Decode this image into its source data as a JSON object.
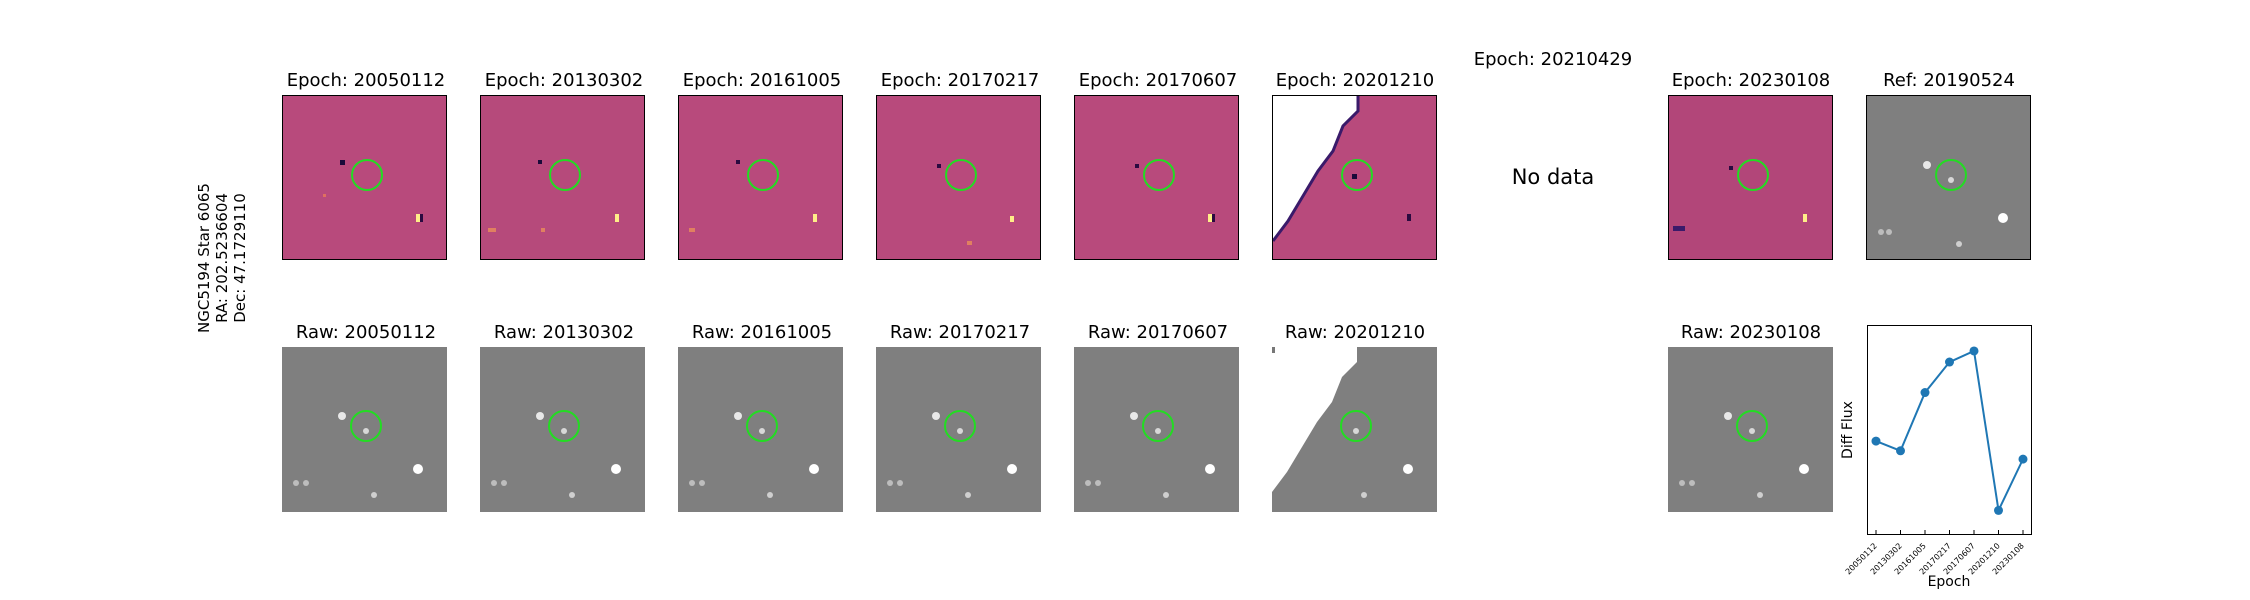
{
  "object": {
    "name": "NGC5194 Star 6065",
    "ra": "RA: 202.5236604",
    "dec": "Dec: 47.1729110"
  },
  "diff_panels": [
    {
      "title": "Epoch: 20050112"
    },
    {
      "title": "Epoch: 20130302"
    },
    {
      "title": "Epoch: 20161005"
    },
    {
      "title": "Epoch: 20170217"
    },
    {
      "title": "Epoch: 20170607"
    },
    {
      "title": "Epoch: 20201210"
    },
    {
      "title": "Epoch: 20210429",
      "no_data": "No data"
    },
    {
      "title": "Epoch: 20230108"
    }
  ],
  "ref_panel": {
    "title": "Ref: 20190524"
  },
  "raw_panels": [
    {
      "title": "Raw: 20050112"
    },
    {
      "title": "Raw: 20130302"
    },
    {
      "title": "Raw: 20161005"
    },
    {
      "title": "Raw: 20170217"
    },
    {
      "title": "Raw: 20170607"
    },
    {
      "title": "Raw: 20201210"
    },
    {
      "title": "Raw: 20230108"
    }
  ],
  "colors": {
    "diff_bg": "#b84a7c",
    "raw_bg": "#7f7f7f",
    "circle": "#22dd22",
    "line": "#1f77b4"
  },
  "chart_data": {
    "type": "line",
    "xlabel": "Epoch",
    "ylabel": "Diff Flux",
    "categories": [
      "20050112",
      "20130302",
      "20161005",
      "20170217",
      "20170607",
      "20201210",
      "20230108"
    ],
    "values": [
      0.05,
      -0.02,
      0.4,
      0.62,
      0.7,
      -0.45,
      -0.08
    ],
    "ylim": [
      -0.62,
      0.88
    ],
    "grid": false
  }
}
